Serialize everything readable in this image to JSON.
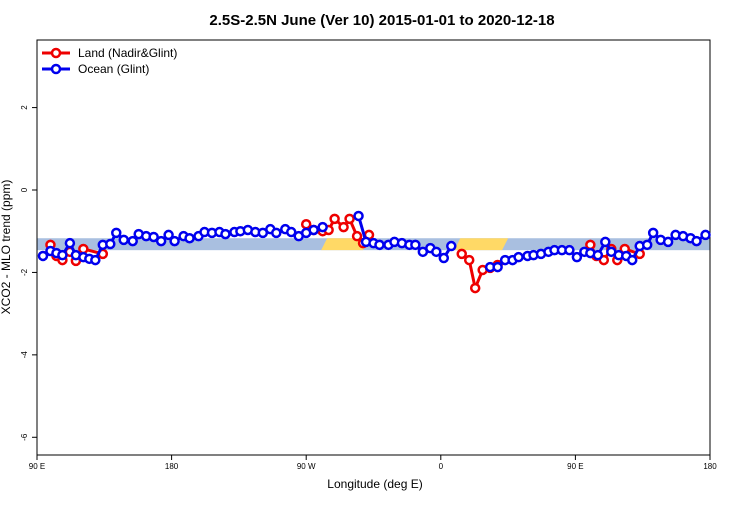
{
  "chart_data": {
    "type": "line",
    "title": "2.5S-2.5N June (Ver 10)   2015-01-01 to 2020-12-18",
    "x_label": "Longitude (deg E)",
    "y_label": "XCO2 - MLO trend (ppm)",
    "xlim": [
      90,
      540
    ],
    "xticks": [
      {
        "value": 90,
        "label": "90 E"
      },
      180,
      {
        "value": 270,
        "label": "90 W"
      },
      {
        "value": 360,
        "label": "0"
      },
      {
        "value": 450,
        "label": "90 E"
      },
      {
        "value": 540,
        "label": "180"
      }
    ],
    "ylim": [
      -6.43,
      3.64
    ],
    "yticks": [
      -6,
      -4,
      -2,
      0,
      2
    ],
    "legend": "top-left",
    "band": {
      "range": [
        -1.46,
        -1.17
      ],
      "color": "#a9bfe0",
      "land_spans": [
        [
          280,
          312
        ],
        [
          369,
          405
        ]
      ],
      "land_color": "#ffd966"
    },
    "series": [
      {
        "name": "Land (Nadir&Glint)",
        "color": "#ee0000",
        "x": [
          99,
          103,
          107,
          112,
          116,
          121,
          134,
          200,
          270,
          275,
          281,
          285,
          289,
          295,
          299,
          304,
          308,
          312,
          340,
          374,
          379,
          383,
          388,
          393,
          398,
          430,
          460,
          464,
          469,
          474,
          478,
          483,
          493
        ],
        "values": [
          -1.33,
          -1.6,
          -1.7,
          -1.5,
          -1.72,
          -1.43,
          -1.55,
          null,
          -0.83,
          -0.97,
          -1.0,
          -0.97,
          -0.7,
          -0.9,
          -0.7,
          -1.12,
          -1.29,
          -1.09,
          null,
          -1.55,
          -1.7,
          -2.38,
          -1.94,
          -1.89,
          -1.82,
          null,
          -1.33,
          -1.6,
          -1.7,
          -1.43,
          -1.7,
          -1.43,
          -1.55
        ]
      },
      {
        "name": "Ocean (Glint)",
        "color": "#0000ee",
        "x": [
          94,
          99,
          103,
          107,
          112,
          116,
          121,
          125,
          129,
          134,
          139,
          143,
          148,
          154,
          158,
          163,
          168,
          173,
          178,
          182,
          188,
          192,
          198,
          202,
          207,
          212,
          216,
          222,
          226,
          231,
          236,
          241,
          246,
          250,
          256,
          260,
          265,
          270,
          275,
          281,
          293,
          305,
          310,
          315,
          319,
          325,
          329,
          334,
          339,
          343,
          348,
          353,
          357,
          362,
          367,
          380,
          393,
          398,
          403,
          408,
          412,
          418,
          422,
          427,
          432,
          436,
          441,
          446,
          451,
          456,
          460,
          465,
          470,
          474,
          479,
          484,
          488,
          493,
          498,
          502,
          507,
          512,
          517,
          522,
          527,
          531,
          537
        ],
        "values": [
          -1.6,
          -1.48,
          -1.53,
          -1.58,
          -1.29,
          -1.58,
          -1.63,
          -1.67,
          -1.7,
          -1.33,
          -1.31,
          -1.04,
          -1.21,
          -1.24,
          -1.07,
          -1.12,
          -1.14,
          -1.24,
          -1.09,
          -1.24,
          -1.12,
          -1.17,
          -1.12,
          -1.02,
          -1.04,
          -1.02,
          -1.07,
          -1.02,
          -1.0,
          -0.97,
          -1.02,
          -1.04,
          -0.95,
          -1.04,
          -0.95,
          -1.02,
          -1.12,
          -1.04,
          -0.97,
          -0.9,
          null,
          -0.63,
          -1.26,
          -1.29,
          -1.33,
          -1.33,
          -1.26,
          -1.29,
          -1.33,
          -1.33,
          -1.5,
          -1.41,
          -1.5,
          -1.65,
          -1.36,
          null,
          -1.87,
          -1.87,
          -1.7,
          -1.7,
          -1.63,
          -1.6,
          -1.58,
          -1.55,
          -1.5,
          -1.46,
          -1.46,
          -1.46,
          -1.63,
          -1.5,
          -1.53,
          -1.58,
          -1.26,
          -1.5,
          -1.58,
          -1.6,
          -1.7,
          -1.36,
          -1.33,
          -1.04,
          -1.21,
          -1.26,
          -1.09,
          -1.12,
          -1.17,
          -1.24,
          -1.09
        ]
      }
    ]
  }
}
